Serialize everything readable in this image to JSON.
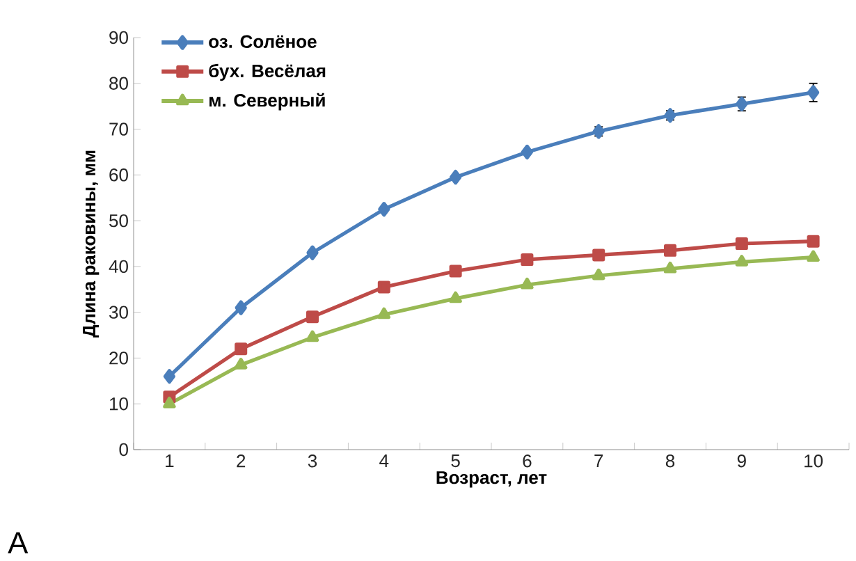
{
  "chart_data": {
    "type": "line",
    "xlabel": "Возраст, лет",
    "ylabel": "Длина раковины, мм",
    "categories": [
      "1",
      "2",
      "3",
      "4",
      "5",
      "6",
      "7",
      "8",
      "9",
      "10"
    ],
    "series": [
      {
        "name": "оз. Солёное",
        "color": "#4a7ebb",
        "marker": "diamond",
        "values": [
          16,
          31,
          43,
          52.5,
          59.5,
          65,
          69.5,
          73,
          75.5,
          78
        ],
        "errors": [
          null,
          null,
          null,
          null,
          null,
          null,
          1,
          1,
          1.5,
          2
        ]
      },
      {
        "name": "бух. Весёлая",
        "color": "#be4b48",
        "marker": "square",
        "values": [
          11.5,
          22,
          29,
          35.5,
          39,
          41.5,
          42.5,
          43.5,
          45,
          45.5
        ]
      },
      {
        "name": "м. Северный",
        "color": "#98b954",
        "marker": "triangle",
        "values": [
          10,
          18.5,
          24.5,
          29.5,
          33,
          36,
          38,
          39.5,
          41,
          42
        ]
      }
    ],
    "ylim": [
      0,
      90
    ],
    "yticks": [
      0,
      10,
      20,
      30,
      40,
      50,
      60,
      70,
      80,
      90
    ],
    "grid": false,
    "legend": "top left",
    "annotations": [
      "A"
    ]
  }
}
